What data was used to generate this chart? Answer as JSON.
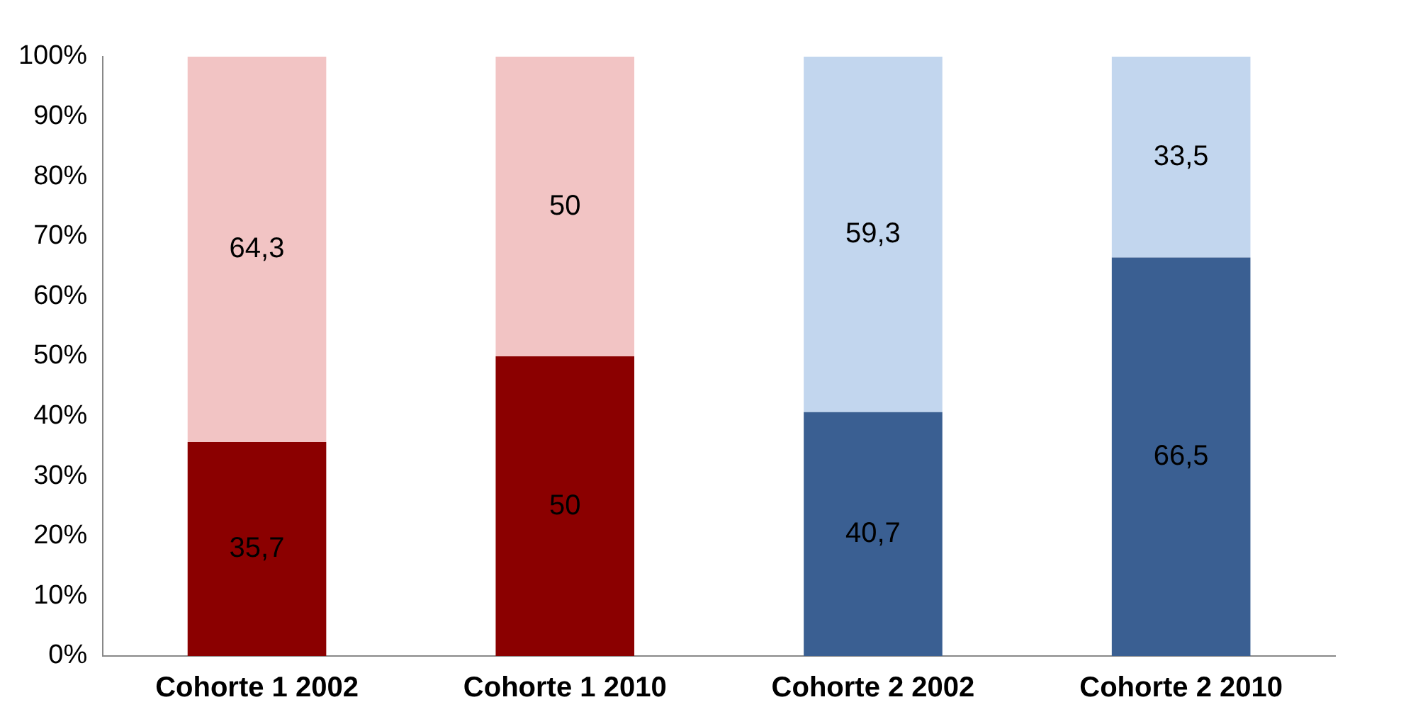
{
  "chart_data": {
    "type": "bar",
    "stacked": true,
    "categories": [
      "Cohorte 1 2002",
      "Cohorte 1 2010",
      "Cohorte 2 2002",
      "Cohorte 2 2010"
    ],
    "series": [
      {
        "colors": [
          "#8b0000",
          "#8b0000",
          "#3a5f92",
          "#3a5f92"
        ],
        "values": [
          35.7,
          50,
          40.7,
          66.5
        ],
        "value_labels": [
          "35,7",
          "50",
          "40,7",
          "66,5"
        ]
      },
      {
        "colors": [
          "#f2c4c4",
          "#f2c4c4",
          "#c2d6ee",
          "#c2d6ee"
        ],
        "values": [
          64.3,
          50,
          59.3,
          33.5
        ],
        "value_labels": [
          "64,3",
          "50",
          "59,3",
          "33,5"
        ]
      }
    ],
    "ylim": [
      0,
      100
    ],
    "yticks": [
      {
        "value": 0,
        "label": "0%"
      },
      {
        "value": 10,
        "label": "10%"
      },
      {
        "value": 20,
        "label": "20%"
      },
      {
        "value": 30,
        "label": "30%"
      },
      {
        "value": 40,
        "label": "40%"
      },
      {
        "value": 50,
        "label": "50%"
      },
      {
        "value": 60,
        "label": "60%"
      },
      {
        "value": 70,
        "label": "70%"
      },
      {
        "value": 80,
        "label": "80%"
      },
      {
        "value": 90,
        "label": "90%"
      },
      {
        "value": 100,
        "label": "100%"
      }
    ],
    "grid": false,
    "legend": false
  }
}
